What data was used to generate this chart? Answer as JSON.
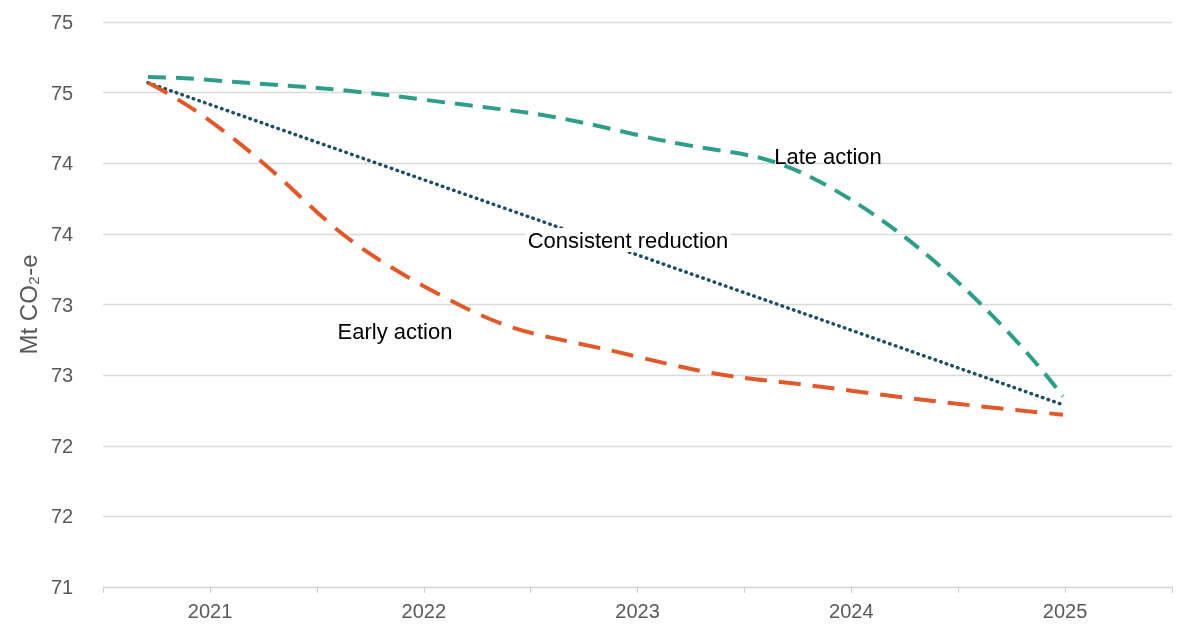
{
  "chart_data": {
    "type": "line",
    "ylabel": "Mt CO₂-e",
    "xlim": [
      2020.5,
      2025.5
    ],
    "xticks": [
      {
        "value": 2020.5,
        "label": null
      },
      2021,
      {
        "value": 2021.5,
        "label": null
      },
      2022,
      {
        "value": 2022.5,
        "label": null
      },
      2023,
      {
        "value": 2023.5,
        "label": null
      },
      2024,
      {
        "value": 2024.5,
        "label": null
      },
      2025,
      {
        "value": 2025.5,
        "label": null
      }
    ],
    "ylim": [
      71,
      75
    ],
    "yticks": [
      71,
      {
        "value": 71.5,
        "label": "72"
      },
      72,
      {
        "value": 72.5,
        "label": "73"
      },
      73,
      {
        "value": 73.5,
        "label": "74"
      },
      74,
      {
        "value": 74.5,
        "label": "75"
      },
      75
    ],
    "grid": "y",
    "marker": "none",
    "series": [
      {
        "color": "#2e9e8a",
        "line_style": "dashed",
        "x": [
          2020.71,
          2021,
          2022,
          2023,
          2024,
          2024.99
        ],
        "values": [
          74.61,
          74.59,
          74.45,
          74.2,
          73.74,
          72.35
        ]
      },
      {
        "color": "#1f4e63",
        "line_style": "dotted",
        "x": [
          2020.71,
          2024.99
        ],
        "values": [
          74.57,
          72.29
        ]
      },
      {
        "color": "#e0592a",
        "line_style": "dashed",
        "x": [
          2020.71,
          2021,
          2022,
          2023,
          2024,
          2024.99
        ],
        "values": [
          74.57,
          74.3,
          73.13,
          72.63,
          72.39,
          72.22
        ]
      }
    ],
    "annotations": [
      "Late action",
      "Consistent reduction",
      "Early action"
    ]
  }
}
